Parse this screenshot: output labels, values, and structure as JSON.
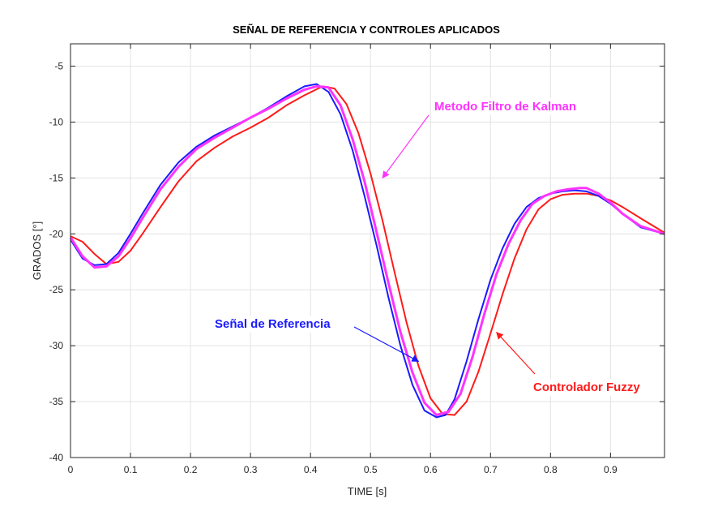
{
  "chart_data": {
    "type": "line",
    "title": "SEÑAL DE REFERENCIA Y CONTROLES APLICADOS",
    "xlabel": "TIME [s]",
    "ylabel": "GRADOS [°]",
    "xlim": [
      0,
      0.99
    ],
    "ylim": [
      -40,
      -3
    ],
    "grid": true,
    "xticks": [
      0,
      0.1,
      0.2,
      0.3,
      0.4,
      0.5,
      0.6,
      0.7,
      0.8,
      0.9
    ],
    "xtick_labels": [
      "0",
      "0.1",
      "0.2",
      "0.3",
      "0.4",
      "0.5",
      "0.6",
      "0.7",
      "0.8",
      "0.9"
    ],
    "yticks": [
      -40,
      -35,
      -30,
      -25,
      -20,
      -15,
      -10,
      -5
    ],
    "ytick_labels": [
      "-40",
      "-35",
      "-30",
      "-25",
      "-20",
      "-15",
      "-10",
      "-5"
    ],
    "series": [
      {
        "name": "Señal de Referencia",
        "color": "#1a1aff",
        "x": [
          0,
          0.02,
          0.04,
          0.06,
          0.08,
          0.1,
          0.12,
          0.15,
          0.18,
          0.21,
          0.24,
          0.27,
          0.3,
          0.33,
          0.36,
          0.39,
          0.41,
          0.43,
          0.45,
          0.47,
          0.49,
          0.51,
          0.53,
          0.55,
          0.57,
          0.59,
          0.61,
          0.625,
          0.64,
          0.66,
          0.68,
          0.7,
          0.72,
          0.74,
          0.76,
          0.78,
          0.8,
          0.82,
          0.84,
          0.86,
          0.88,
          0.9,
          0.92,
          0.95,
          0.99
        ],
        "y": [
          -20.5,
          -22.2,
          -22.8,
          -22.7,
          -21.7,
          -20.0,
          -18.2,
          -15.6,
          -13.6,
          -12.2,
          -11.2,
          -10.4,
          -9.6,
          -8.7,
          -7.7,
          -6.8,
          -6.6,
          -7.3,
          -9.3,
          -12.5,
          -16.6,
          -21.0,
          -25.7,
          -30.0,
          -33.5,
          -35.8,
          -36.4,
          -36.2,
          -34.8,
          -31.4,
          -27.6,
          -24.1,
          -21.3,
          -19.1,
          -17.6,
          -16.8,
          -16.4,
          -16.2,
          -16.1,
          -16.2,
          -16.6,
          -17.3,
          -18.2,
          -19.4,
          -20.0
        ]
      },
      {
        "name": "Metodo Filtro de Kalman",
        "color": "#ff33ff",
        "x": [
          0,
          0.02,
          0.04,
          0.06,
          0.08,
          0.1,
          0.12,
          0.15,
          0.18,
          0.21,
          0.24,
          0.27,
          0.3,
          0.33,
          0.36,
          0.39,
          0.41,
          0.43,
          0.45,
          0.47,
          0.49,
          0.51,
          0.53,
          0.55,
          0.57,
          0.59,
          0.61,
          0.63,
          0.65,
          0.67,
          0.69,
          0.71,
          0.73,
          0.75,
          0.77,
          0.79,
          0.81,
          0.83,
          0.85,
          0.86,
          0.88,
          0.9,
          0.92,
          0.95,
          0.99
        ],
        "y": [
          -20.3,
          -22.0,
          -23.0,
          -22.9,
          -22.0,
          -20.4,
          -18.6,
          -16.0,
          -14.0,
          -12.4,
          -11.4,
          -10.5,
          -9.6,
          -8.8,
          -7.9,
          -7.1,
          -6.8,
          -6.9,
          -8.5,
          -11.5,
          -15.3,
          -19.8,
          -24.4,
          -28.8,
          -32.4,
          -35.1,
          -36.2,
          -35.9,
          -34.3,
          -31.0,
          -27.1,
          -23.6,
          -20.9,
          -18.8,
          -17.3,
          -16.6,
          -16.2,
          -16.0,
          -15.9,
          -15.9,
          -16.4,
          -17.2,
          -18.2,
          -19.3,
          -20.0
        ]
      },
      {
        "name": "Controlador Fuzzy",
        "color": "#ff1a1a",
        "x": [
          0,
          0.02,
          0.04,
          0.06,
          0.08,
          0.1,
          0.12,
          0.15,
          0.18,
          0.21,
          0.24,
          0.27,
          0.3,
          0.33,
          0.36,
          0.39,
          0.42,
          0.44,
          0.46,
          0.48,
          0.5,
          0.52,
          0.54,
          0.56,
          0.58,
          0.6,
          0.62,
          0.64,
          0.66,
          0.68,
          0.7,
          0.72,
          0.74,
          0.76,
          0.78,
          0.8,
          0.82,
          0.84,
          0.86,
          0.88,
          0.9,
          0.92,
          0.95,
          0.99
        ],
        "y": [
          -20.2,
          -20.7,
          -21.8,
          -22.7,
          -22.5,
          -21.5,
          -20.0,
          -17.6,
          -15.3,
          -13.5,
          -12.3,
          -11.3,
          -10.5,
          -9.6,
          -8.5,
          -7.6,
          -6.8,
          -7.0,
          -8.4,
          -11.0,
          -14.6,
          -18.8,
          -23.4,
          -27.9,
          -31.8,
          -34.7,
          -36.1,
          -36.2,
          -35.0,
          -32.3,
          -28.9,
          -25.4,
          -22.2,
          -19.6,
          -17.8,
          -16.9,
          -16.5,
          -16.4,
          -16.4,
          -16.6,
          -17.0,
          -17.6,
          -18.6,
          -19.9
        ]
      }
    ],
    "annotations": [
      {
        "text": "Metodo Filtro de Kalman",
        "color": "#ff33ff",
        "arrow_to": [
          0.52,
          -15.0
        ]
      },
      {
        "text": "Señal de Referencia",
        "color": "#1a1aff",
        "arrow_to": [
          0.58,
          -31.4
        ]
      },
      {
        "text": "Controlador Fuzzy",
        "color": "#ff1a1a",
        "arrow_to": [
          0.71,
          -28.8
        ]
      }
    ]
  }
}
